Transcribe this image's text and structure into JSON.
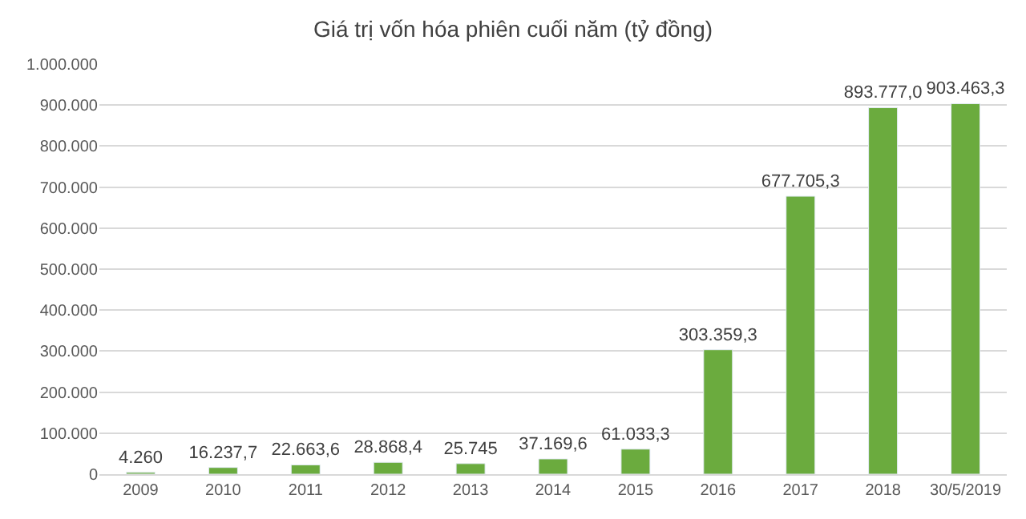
{
  "chart_data": {
    "type": "bar",
    "title": "Giá trị vốn hóa phiên cuối năm (tỷ đồng)",
    "categories": [
      "2009",
      "2010",
      "2011",
      "2012",
      "2013",
      "2014",
      "2015",
      "2016",
      "2017",
      "2018",
      "30/5/2019"
    ],
    "values": [
      4260,
      16237.7,
      22663.6,
      28868.4,
      25745,
      37169.6,
      61033.3,
      303359.3,
      677705.3,
      893777.0,
      903463.3
    ],
    "value_labels": [
      "4.260",
      "16.237,7",
      "22.663,6",
      "28.868,4",
      "25.745",
      "37.169,6",
      "61.033,3",
      "303.359,3",
      "677.705,3",
      "893.777,0",
      "903.463,3"
    ],
    "color": "#6bab3e",
    "ylim": [
      0,
      1000000
    ],
    "yticks": [
      {
        "value": 0,
        "label": "0"
      },
      {
        "value": 100000,
        "label": "100.000"
      },
      {
        "value": 200000,
        "label": "200.000"
      },
      {
        "value": 300000,
        "label": "300.000"
      },
      {
        "value": 400000,
        "label": "400.000"
      },
      {
        "value": 500000,
        "label": "500.000"
      },
      {
        "value": 600000,
        "label": "600.000"
      },
      {
        "value": 700000,
        "label": "700.000"
      },
      {
        "value": 800000,
        "label": "800.000"
      },
      {
        "value": 900000,
        "label": "900.000"
      },
      {
        "value": 1000000,
        "label": "1.000.000"
      }
    ],
    "grid": "y"
  }
}
